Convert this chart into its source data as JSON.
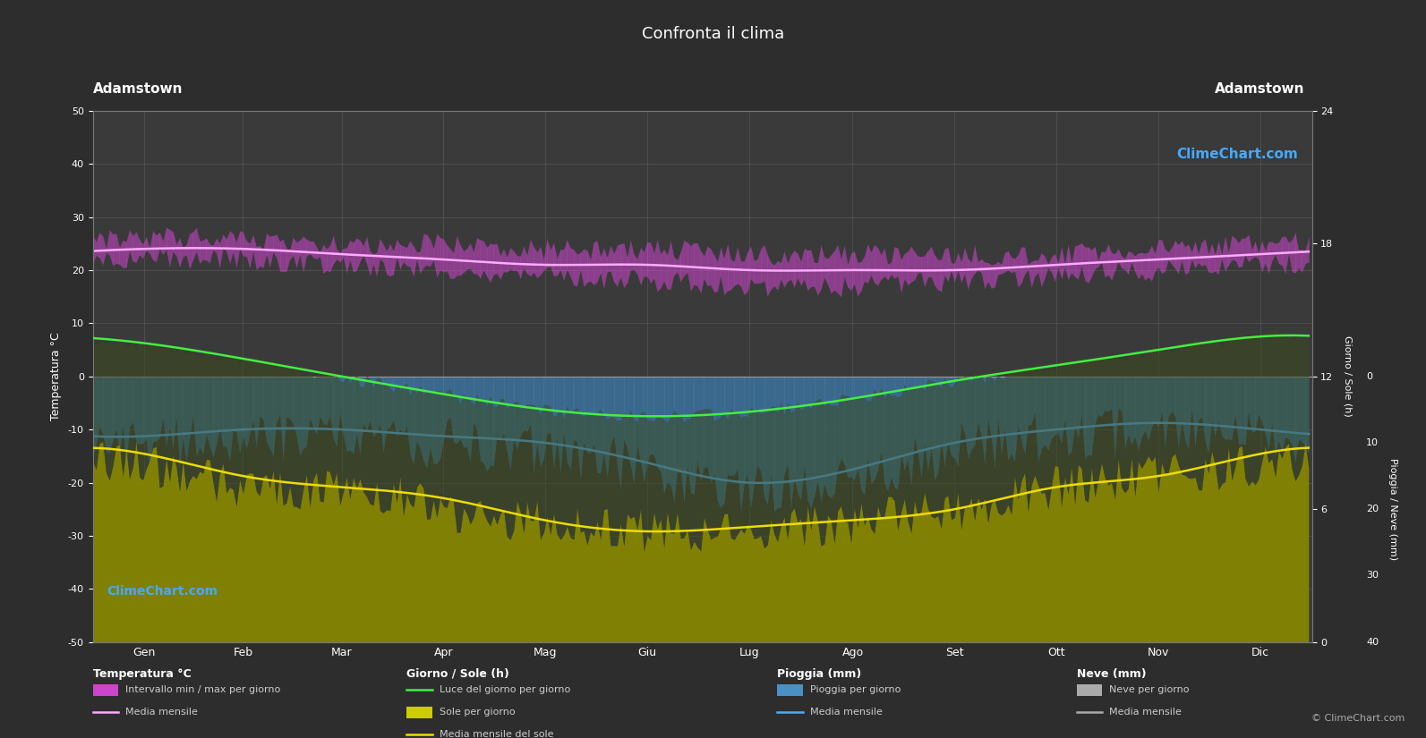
{
  "title": "Confronta il clima",
  "location_left": "Adamstown",
  "location_right": "Adamstown",
  "bg_color": "#2d2d2d",
  "plot_bg_color": "#3a3a3a",
  "text_color": "#ffffff",
  "grid_color": "#555555",
  "months": [
    "Gen",
    "Feb",
    "Mar",
    "Apr",
    "Mag",
    "Giu",
    "Lug",
    "Ago",
    "Set",
    "Ott",
    "Nov",
    "Dic"
  ],
  "temp_max_daily": [
    26,
    26,
    25,
    25,
    24,
    24,
    23,
    23,
    23,
    23,
    24,
    25
  ],
  "temp_min_daily": [
    22,
    22,
    21,
    20,
    19,
    18,
    17,
    17,
    18,
    19,
    20,
    21
  ],
  "temp_mean_monthly": [
    24,
    24,
    23,
    22,
    21,
    21,
    20,
    20,
    20,
    21,
    22,
    23
  ],
  "daylight_hours": [
    13.5,
    12.8,
    12.0,
    11.2,
    10.5,
    10.2,
    10.4,
    11.0,
    11.8,
    12.5,
    13.2,
    13.8
  ],
  "sunshine_hours": [
    8,
    7,
    7,
    6,
    5.5,
    5,
    5,
    5.5,
    6,
    7,
    7.5,
    8
  ],
  "sunshine_mean": [
    8.5,
    7.5,
    7.0,
    6.5,
    5.5,
    5.0,
    5.2,
    5.5,
    6.0,
    7.0,
    7.5,
    8.5
  ],
  "rain_monthly_mean": [
    9,
    8,
    8,
    9,
    10,
    13,
    16,
    14,
    10,
    8,
    7,
    8
  ],
  "rain_color": "#3a7aaa",
  "daylight_color": "#44ee44",
  "sunshine_bar_color": "#888800",
  "temp_range_color": "#cc44cc",
  "temp_mean_color": "#ffaaff",
  "sunshine_mean_color": "#eedd00",
  "rain_line_color": "#55aaee",
  "watermark_color": "#44aaff",
  "copyright_text": "© ClimeChart.com"
}
